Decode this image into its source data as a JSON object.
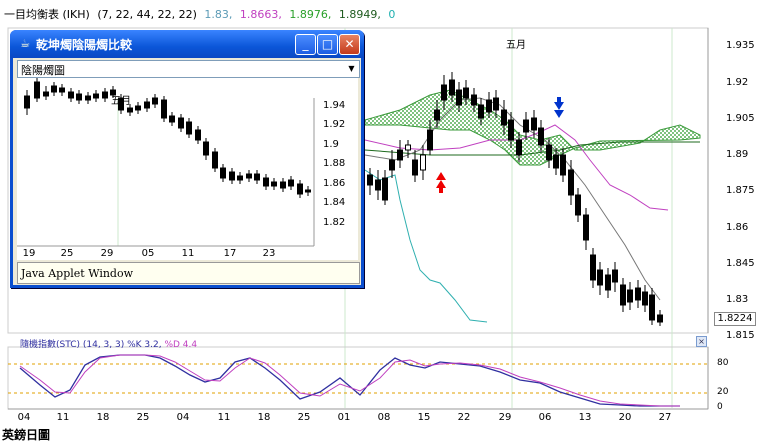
{
  "header": {
    "indicator": "一目均衡表 (IKH)",
    "params": "(7, 22, 44, 22, 22)",
    "v1": "1.83,",
    "v2": "1.8663,",
    "v3": "1.8976,",
    "v4": "1.8949,",
    "v5": "0",
    "colors": {
      "v1": "#5c9bb6",
      "v2": "#c040c0",
      "v3": "#2aa02a",
      "v4": "#1e5a1e",
      "v5": "#20b0b0"
    }
  },
  "main": {
    "month_label": "五月",
    "price_ticks": [
      "1.935",
      "1.92",
      "1.905",
      "1.89",
      "1.875",
      "1.86",
      "1.845",
      "1.83",
      "1.815"
    ],
    "current_price": "1.8224",
    "x_ticks": [
      "04",
      "11",
      "18",
      "25",
      "04",
      "11",
      "18",
      "25",
      "01",
      "08",
      "15",
      "22",
      "29",
      "06",
      "13",
      "20",
      "27"
    ]
  },
  "stc": {
    "label": "隨機指數(STC) (14, 3, 3) %K 3.2,",
    "label_d": "%D 4.4",
    "ticks": [
      "80",
      "20",
      "0"
    ],
    "close": "×"
  },
  "footer": {
    "title": "英鎊日圖"
  },
  "popup": {
    "title": "乾坤燭陰陽燭比較",
    "select_value": "陰陽燭圖",
    "month_label": "五月",
    "y_ticks": [
      "1.94",
      "1.92",
      "1.9",
      "1.88",
      "1.86",
      "1.84",
      "1.82"
    ],
    "x_ticks": [
      "19",
      "25",
      "29",
      "05",
      "11",
      "17",
      "23"
    ],
    "status": "Java Applet Window",
    "buttons": {
      "min": "_",
      "max": "□",
      "close": "✕"
    }
  }
}
